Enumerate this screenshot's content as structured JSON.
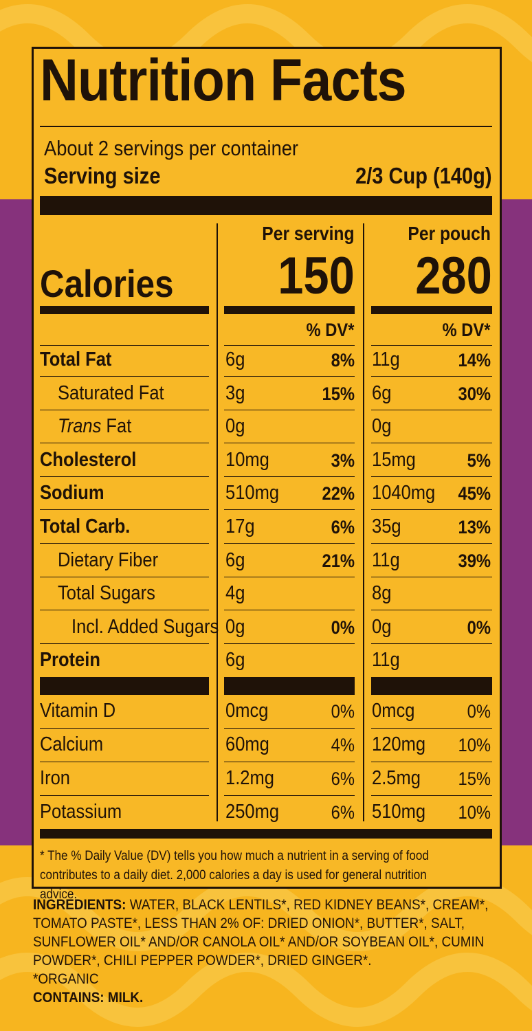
{
  "colors": {
    "background": "#f7b51f",
    "band": "#86327c",
    "ink": "#1f1208"
  },
  "title": "Nutrition Facts",
  "servings_per_container": "About 2 servings per container",
  "serving_size_label": "Serving size",
  "serving_size_value": "2/3 Cup (140g)",
  "columns": {
    "per_serving": "Per serving",
    "per_pouch": "Per pouch",
    "dv_header": "% DV*"
  },
  "calories": {
    "label": "Calories",
    "per_serving": "150",
    "per_pouch": "280"
  },
  "nutrients": [
    {
      "label": "Total Fat",
      "s_amt": "6g",
      "s_dv": "8%",
      "p_amt": "11g",
      "p_dv": "14%"
    },
    {
      "label": "Saturated Fat",
      "s_amt": "3g",
      "s_dv": "15%",
      "p_amt": "6g",
      "p_dv": "30%"
    },
    {
      "label_italic": "Trans",
      "label": " Fat",
      "s_amt": "0g",
      "s_dv": "",
      "p_amt": "0g",
      "p_dv": ""
    },
    {
      "label": "Cholesterol",
      "s_amt": "10mg",
      "s_dv": "3%",
      "p_amt": "15mg",
      "p_dv": "5%"
    },
    {
      "label": "Sodium",
      "s_amt": "510mg",
      "s_dv": "22%",
      "p_amt": "1040mg",
      "p_dv": "45%"
    },
    {
      "label": "Total Carb.",
      "s_amt": "17g",
      "s_dv": "6%",
      "p_amt": "35g",
      "p_dv": "13%"
    },
    {
      "label": "Dietary Fiber",
      "s_amt": "6g",
      "s_dv": "21%",
      "p_amt": "11g",
      "p_dv": "39%"
    },
    {
      "label": "Total Sugars",
      "s_amt": "4g",
      "s_dv": "",
      "p_amt": "8g",
      "p_dv": ""
    },
    {
      "label": "Incl. Added Sugars",
      "s_amt": "0g",
      "s_dv": "0%",
      "p_amt": "0g",
      "p_dv": "0%"
    },
    {
      "label": "Protein",
      "s_amt": "6g",
      "s_dv": "",
      "p_amt": "11g",
      "p_dv": ""
    }
  ],
  "vitamins": [
    {
      "label": "Vitamin D",
      "s_amt": "0mcg",
      "s_dv": "0%",
      "p_amt": "0mcg",
      "p_dv": "0%"
    },
    {
      "label": "Calcium",
      "s_amt": "60mg",
      "s_dv": "4%",
      "p_amt": "120mg",
      "p_dv": "10%"
    },
    {
      "label": "Iron",
      "s_amt": "1.2mg",
      "s_dv": "6%",
      "p_amt": "2.5mg",
      "p_dv": "15%"
    },
    {
      "label": "Potassium",
      "s_amt": "250mg",
      "s_dv": "6%",
      "p_amt": "510mg",
      "p_dv": "10%"
    }
  ],
  "footnote": "* The % Daily Value (DV) tells you how much a nutrient in a serving of food contributes to a daily diet. 2,000 calories a day is used for general nutrition advice.",
  "ingredients_label": "INGREDIENTS:",
  "ingredients_text": " WATER, BLACK LENTILS*, RED KIDNEY BEANS*, CREAM*, TOMATO PASTE*, LESS THAN 2% OF: DRIED ONION*, BUTTER*, SALT, SUNFLOWER OIL* AND/OR CANOLA OIL* AND/OR SOYBEAN OIL*, CUMIN POWDER*, CHILI PEPPER POWDER*, DRIED GINGER*.",
  "organic_note": "*ORGANIC",
  "contains": "CONTAINS: MILK."
}
